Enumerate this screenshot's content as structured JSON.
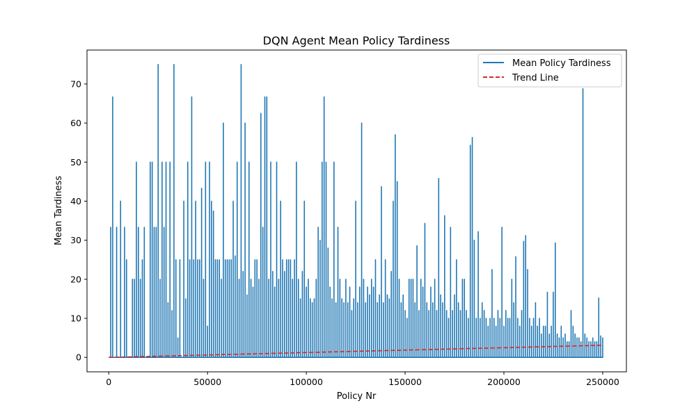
{
  "chart_data": {
    "type": "line",
    "title": "DQN Agent Mean Policy Tardiness",
    "xlabel": "Policy Nr",
    "ylabel": "Mean Tardiness",
    "xlim": [
      -11000,
      262000
    ],
    "ylim": [
      -3.7,
      78.7
    ],
    "xticks": [
      0,
      50000,
      100000,
      150000,
      200000,
      250000
    ],
    "yticks": [
      0,
      10,
      20,
      30,
      40,
      50,
      60,
      70
    ],
    "grid": false,
    "legend": {
      "placement": "top-right"
    },
    "series": [
      {
        "name": "Mean Policy Tardiness",
        "color": "#1f77b4",
        "style": "solid",
        "x": [
          0,
          1000,
          2000,
          3000,
          4000,
          5000,
          6000,
          7000,
          8000,
          9000,
          10000,
          11000,
          12000,
          13000,
          14000,
          15000,
          16000,
          17000,
          18000,
          19000,
          20000,
          21000,
          22000,
          23000,
          24000,
          25000,
          26000,
          27000,
          28000,
          29000,
          30000,
          31000,
          32000,
          33000,
          34000,
          35000,
          36000,
          37000,
          38000,
          39000,
          40000,
          41000,
          42000,
          43000,
          44000,
          45000,
          46000,
          47000,
          48000,
          49000,
          50000,
          51000,
          52000,
          53000,
          54000,
          55000,
          56000,
          57000,
          58000,
          59000,
          60000,
          61000,
          62000,
          63000,
          64000,
          65000,
          66000,
          67000,
          68000,
          69000,
          70000,
          71000,
          72000,
          73000,
          74000,
          75000,
          76000,
          77000,
          78000,
          79000,
          80000,
          81000,
          82000,
          83000,
          84000,
          85000,
          86000,
          87000,
          88000,
          89000,
          90000,
          91000,
          92000,
          93000,
          94000,
          95000,
          96000,
          97000,
          98000,
          99000,
          100000,
          101000,
          102000,
          103000,
          104000,
          105000,
          106000,
          107000,
          108000,
          109000,
          110000,
          111000,
          112000,
          113000,
          114000,
          115000,
          116000,
          117000,
          118000,
          119000,
          120000,
          121000,
          122000,
          123000,
          124000,
          125000,
          126000,
          127000,
          128000,
          129000,
          130000,
          131000,
          132000,
          133000,
          134000,
          135000,
          136000,
          137000,
          138000,
          139000,
          140000,
          141000,
          142000,
          143000,
          144000,
          145000,
          146000,
          147000,
          148000,
          149000,
          150000,
          151000,
          152000,
          153000,
          154000,
          155000,
          156000,
          157000,
          158000,
          159000,
          160000,
          161000,
          162000,
          163000,
          164000,
          165000,
          166000,
          167000,
          168000,
          169000,
          170000,
          171000,
          172000,
          173000,
          174000,
          175000,
          176000,
          177000,
          178000,
          179000,
          180000,
          181000,
          182000,
          183000,
          184000,
          185000,
          186000,
          187000,
          188000,
          189000,
          190000,
          191000,
          192000,
          193000,
          194000,
          195000,
          196000,
          197000,
          198000,
          199000,
          200000,
          201000,
          202000,
          203000,
          204000,
          205000,
          206000,
          207000,
          208000,
          209000,
          210000,
          211000,
          212000,
          213000,
          214000,
          215000,
          216000,
          217000,
          218000,
          219000,
          220000,
          221000,
          222000,
          223000,
          224000,
          225000,
          226000,
          227000,
          228000,
          229000,
          230000,
          231000,
          232000,
          233000,
          234000,
          235000,
          236000,
          237000,
          238000,
          239000,
          240000,
          241000,
          242000,
          243000,
          244000,
          245000,
          246000,
          247000,
          248000,
          249000,
          250000
        ],
        "y": [
          0,
          33.3,
          66.7,
          0,
          33.3,
          0,
          40,
          0,
          33.3,
          25,
          0,
          0,
          20,
          20,
          50,
          33.3,
          20,
          25,
          33.3,
          0,
          0,
          50,
          50,
          33.3,
          33.3,
          75,
          20,
          50,
          33.3,
          50,
          14,
          50,
          12,
          75,
          25,
          5,
          25,
          0,
          40,
          15,
          50,
          25,
          66.7,
          25,
          40,
          25,
          25,
          43.3,
          20,
          50,
          8,
          50,
          40,
          37.5,
          25,
          25,
          25,
          20,
          60,
          25,
          25,
          25,
          25,
          40,
          26,
          50,
          20,
          75,
          22,
          60,
          16,
          50,
          20,
          18,
          25,
          25,
          20,
          62.5,
          33.3,
          66.7,
          66.7,
          20,
          50,
          22,
          18,
          50,
          20,
          40,
          25,
          22,
          25,
          25,
          25,
          20,
          25,
          50,
          20,
          15,
          22,
          40,
          18,
          20,
          15,
          14,
          15,
          20,
          33.3,
          30,
          50,
          66.7,
          50,
          28,
          18,
          15,
          50,
          14,
          33.3,
          20,
          15,
          14,
          20,
          14,
          18,
          12,
          15,
          40,
          14,
          18,
          60,
          20,
          14,
          18,
          16,
          20,
          18,
          25,
          14,
          16,
          43.7,
          14,
          25,
          16,
          15,
          22,
          40,
          57,
          45,
          20,
          14,
          16,
          12,
          10,
          20,
          20,
          20,
          14,
          28.6,
          12,
          20,
          18,
          34.3,
          14,
          12,
          18,
          14,
          20,
          12,
          45.8,
          16,
          14,
          36.3,
          12,
          10,
          33.3,
          12,
          16,
          25,
          14,
          12,
          20,
          20,
          12,
          10,
          54.3,
          56.3,
          30,
          10,
          32.2,
          10,
          14,
          12,
          10,
          8,
          10,
          22.5,
          10,
          8,
          12,
          10,
          33.3,
          8,
          12,
          10,
          10,
          20,
          14,
          25.8,
          10,
          8,
          12,
          29.7,
          31.2,
          22.5,
          10,
          8,
          10,
          14,
          8,
          10,
          6,
          8,
          8,
          16.7,
          6,
          8,
          16.7,
          29.3,
          6,
          5,
          8,
          5,
          6,
          4,
          4,
          12,
          8,
          6,
          5,
          5,
          4,
          68.8,
          6,
          5,
          4,
          4,
          5,
          4,
          4,
          15.2,
          5.5,
          5
        ],
        "floor": [
          0,
          0,
          0,
          0,
          0,
          0,
          0,
          0,
          0,
          0,
          0,
          0,
          0,
          0,
          0,
          0,
          0,
          0,
          0,
          0,
          0,
          0,
          0,
          0,
          0,
          0,
          0,
          0,
          0,
          0,
          0,
          0,
          0,
          0,
          0,
          0,
          0,
          0,
          0,
          0,
          0,
          0,
          0,
          0,
          0,
          0,
          0,
          0,
          0,
          0,
          0,
          0,
          0,
          0,
          0,
          0,
          0,
          0,
          0,
          0,
          0,
          0,
          0,
          0,
          0,
          0,
          0,
          0,
          0,
          0,
          0,
          0,
          0,
          0,
          0,
          0,
          0,
          0,
          0,
          0,
          0,
          0,
          0,
          0,
          0,
          0,
          0,
          0,
          0,
          0,
          0,
          0,
          0,
          0,
          0,
          0,
          0,
          0,
          0,
          0,
          0,
          0,
          0,
          0,
          0,
          0,
          0,
          0,
          0,
          0,
          0,
          0,
          0,
          0,
          0,
          0,
          0,
          0,
          0,
          0,
          0,
          0,
          0,
          0,
          0,
          0,
          0,
          0,
          0,
          0,
          0,
          0,
          0,
          0,
          0,
          0,
          0,
          0,
          0,
          0,
          0,
          0,
          0,
          0,
          0,
          0,
          0,
          0,
          0,
          0,
          0,
          0,
          0,
          0,
          0,
          0,
          0,
          0,
          0,
          0,
          0,
          0,
          0,
          0,
          0,
          0,
          0,
          0,
          0,
          0,
          0,
          0,
          0,
          0,
          0,
          0,
          0,
          0,
          0,
          0,
          0,
          0,
          0,
          0,
          0,
          0,
          0,
          0,
          0,
          0,
          0,
          0,
          0,
          0,
          0,
          0,
          0,
          0,
          0,
          0,
          0,
          0,
          0,
          0,
          0,
          0,
          0,
          0,
          0,
          0,
          0,
          0,
          0,
          0,
          0,
          0,
          0,
          0,
          0,
          0,
          0,
          0,
          0,
          0,
          0,
          0,
          0,
          0,
          0,
          0,
          0,
          0,
          0,
          0,
          0,
          0,
          0,
          0,
          0,
          0,
          0,
          0,
          0,
          0,
          0,
          0,
          0,
          0,
          0,
          0,
          0
        ]
      },
      {
        "name": "Trend Line",
        "color": "#d62728",
        "style": "dashed",
        "x": [
          0,
          250000
        ],
        "y": [
          0,
          3.1
        ]
      }
    ]
  }
}
